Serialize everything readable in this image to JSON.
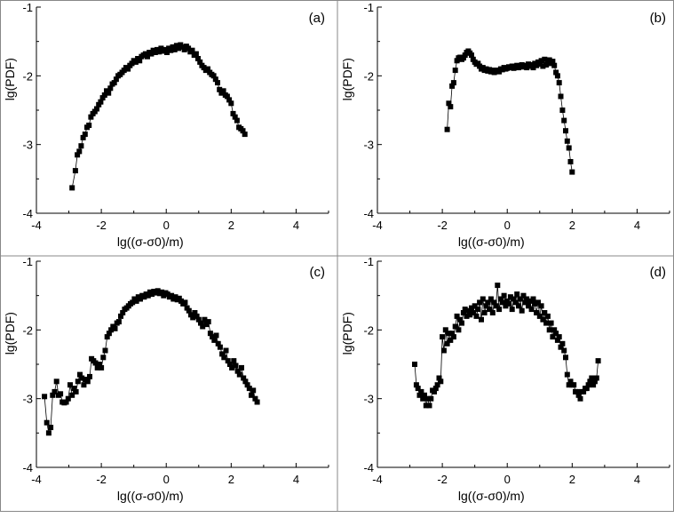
{
  "chart_data": [
    {
      "type": "line",
      "panel_label": "(a)",
      "xlabel": "lg((σ-σ0)/m)",
      "ylabel": "lg(PDF)",
      "xlim": [
        -4,
        5
      ],
      "ylim": [
        -4,
        -1
      ],
      "xticks": [
        "-4",
        "-2",
        "0",
        "2",
        "4"
      ],
      "yticks": [
        "-4",
        "-3",
        "-2",
        "-1"
      ],
      "marker": "square",
      "series": [
        {
          "x": [
            -2.9,
            -2.8,
            -2.74,
            -2.68,
            -2.62,
            -2.56,
            -2.5,
            -2.44,
            -2.38,
            -2.32,
            -2.26,
            -2.2,
            -2.14,
            -2.08,
            -2.02,
            -1.96,
            -1.9,
            -1.84,
            -1.78,
            -1.72,
            -1.66,
            -1.6,
            -1.54,
            -1.48,
            -1.42,
            -1.36,
            -1.3,
            -1.24,
            -1.18,
            -1.12,
            -1.06,
            -1.0,
            -0.94,
            -0.88,
            -0.82,
            -0.76,
            -0.7,
            -0.64,
            -0.58,
            -0.52,
            -0.46,
            -0.4,
            -0.34,
            -0.28,
            -0.22,
            -0.16,
            -0.1,
            -0.04,
            0.02,
            0.08,
            0.14,
            0.2,
            0.26,
            0.32,
            0.38,
            0.44,
            0.5,
            0.56,
            0.62,
            0.68,
            0.74,
            0.8,
            0.86,
            0.92,
            0.98,
            1.04,
            1.1,
            1.16,
            1.22,
            1.28,
            1.34,
            1.4,
            1.46,
            1.52,
            1.58,
            1.64,
            1.7,
            1.76,
            1.82,
            1.88,
            1.94,
            2.0,
            2.06,
            2.12,
            2.18,
            2.24,
            2.3,
            2.36,
            2.42
          ],
          "y": [
            -3.63,
            -3.38,
            -3.15,
            -3.1,
            -3.02,
            -2.9,
            -2.85,
            -2.75,
            -2.72,
            -2.6,
            -2.55,
            -2.52,
            -2.48,
            -2.42,
            -2.38,
            -2.32,
            -2.28,
            -2.22,
            -2.25,
            -2.18,
            -2.12,
            -2.1,
            -2.05,
            -2.0,
            -1.98,
            -1.95,
            -1.92,
            -1.88,
            -1.9,
            -1.85,
            -1.82,
            -1.78,
            -1.8,
            -1.75,
            -1.78,
            -1.72,
            -1.7,
            -1.68,
            -1.72,
            -1.66,
            -1.68,
            -1.63,
            -1.66,
            -1.62,
            -1.65,
            -1.6,
            -1.64,
            -1.62,
            -1.66,
            -1.6,
            -1.63,
            -1.58,
            -1.62,
            -1.56,
            -1.6,
            -1.55,
            -1.58,
            -1.62,
            -1.57,
            -1.6,
            -1.65,
            -1.63,
            -1.7,
            -1.68,
            -1.75,
            -1.8,
            -1.85,
            -1.88,
            -1.92,
            -1.9,
            -1.95,
            -1.98,
            -2.0,
            -2.05,
            -2.1,
            -2.2,
            -2.25,
            -2.22,
            -2.28,
            -2.3,
            -2.35,
            -2.4,
            -2.55,
            -2.6,
            -2.65,
            -2.75,
            -2.77,
            -2.8,
            -2.85
          ]
        }
      ]
    },
    {
      "type": "line",
      "panel_label": "(b)",
      "xlabel": "lg((σ-σ0)/m)",
      "ylabel": "lg(PDF)",
      "xlim": [
        -4,
        5
      ],
      "ylim": [
        -4,
        -1
      ],
      "xticks": [
        "-4",
        "-2",
        "0",
        "2",
        "4"
      ],
      "yticks": [
        "-4",
        "-3",
        "-2",
        "-1"
      ],
      "marker": "square",
      "series": [
        {
          "x": [
            -1.85,
            -1.8,
            -1.75,
            -1.7,
            -1.65,
            -1.6,
            -1.55,
            -1.5,
            -1.45,
            -1.4,
            -1.35,
            -1.3,
            -1.25,
            -1.2,
            -1.15,
            -1.1,
            -1.05,
            -1.0,
            -0.95,
            -0.9,
            -0.85,
            -0.8,
            -0.75,
            -0.7,
            -0.65,
            -0.6,
            -0.55,
            -0.5,
            -0.45,
            -0.4,
            -0.35,
            -0.3,
            -0.25,
            -0.2,
            -0.15,
            -0.1,
            -0.05,
            0.0,
            0.05,
            0.1,
            0.15,
            0.2,
            0.25,
            0.3,
            0.35,
            0.4,
            0.45,
            0.5,
            0.55,
            0.6,
            0.65,
            0.7,
            0.75,
            0.8,
            0.85,
            0.9,
            0.95,
            1.0,
            1.05,
            1.1,
            1.15,
            1.2,
            1.25,
            1.3,
            1.35,
            1.4,
            1.45,
            1.5,
            1.55,
            1.6,
            1.65,
            1.7,
            1.75,
            1.8,
            1.85,
            1.9,
            1.95,
            2.0
          ],
          "y": [
            -2.78,
            -2.4,
            -2.45,
            -2.15,
            -2.1,
            -1.92,
            -1.78,
            -1.74,
            -1.73,
            -1.76,
            -1.74,
            -1.7,
            -1.66,
            -1.64,
            -1.67,
            -1.7,
            -1.76,
            -1.8,
            -1.83,
            -1.82,
            -1.86,
            -1.9,
            -1.88,
            -1.92,
            -1.9,
            -1.93,
            -1.91,
            -1.94,
            -1.92,
            -1.95,
            -1.93,
            -1.92,
            -1.94,
            -1.9,
            -1.91,
            -1.88,
            -1.9,
            -1.89,
            -1.87,
            -1.88,
            -1.86,
            -1.89,
            -1.87,
            -1.85,
            -1.88,
            -1.86,
            -1.84,
            -1.87,
            -1.85,
            -1.88,
            -1.83,
            -1.86,
            -1.84,
            -1.88,
            -1.82,
            -1.85,
            -1.8,
            -1.83,
            -1.78,
            -1.86,
            -1.76,
            -1.84,
            -1.8,
            -1.77,
            -1.82,
            -1.79,
            -1.85,
            -1.95,
            -2.0,
            -2.1,
            -2.3,
            -2.5,
            -2.65,
            -2.8,
            -2.95,
            -3.05,
            -3.25,
            -3.4
          ]
        }
      ]
    },
    {
      "type": "line",
      "panel_label": "(c)",
      "xlabel": "lg((σ-σ0)/m)",
      "ylabel": "lg(PDF)",
      "xlim": [
        -4,
        5
      ],
      "ylim": [
        -4,
        -1
      ],
      "xticks": [
        "-4",
        "-2",
        "0",
        "2",
        "4"
      ],
      "yticks": [
        "-4",
        "-3",
        "-2",
        "-1"
      ],
      "marker": "square",
      "series": [
        {
          "x": [
            -3.75,
            -3.68,
            -3.62,
            -3.56,
            -3.5,
            -3.44,
            -3.38,
            -3.32,
            -3.26,
            -3.2,
            -3.14,
            -3.08,
            -3.02,
            -2.96,
            -2.9,
            -2.84,
            -2.78,
            -2.72,
            -2.66,
            -2.6,
            -2.54,
            -2.48,
            -2.42,
            -2.36,
            -2.3,
            -2.24,
            -2.18,
            -2.12,
            -2.06,
            -2.0,
            -1.94,
            -1.88,
            -1.82,
            -1.76,
            -1.7,
            -1.64,
            -1.58,
            -1.52,
            -1.46,
            -1.4,
            -1.34,
            -1.28,
            -1.22,
            -1.16,
            -1.1,
            -1.04,
            -0.98,
            -0.92,
            -0.86,
            -0.8,
            -0.74,
            -0.68,
            -0.62,
            -0.56,
            -0.5,
            -0.44,
            -0.38,
            -0.32,
            -0.26,
            -0.2,
            -0.14,
            -0.08,
            -0.02,
            0.04,
            0.1,
            0.16,
            0.22,
            0.28,
            0.34,
            0.4,
            0.46,
            0.52,
            0.58,
            0.64,
            0.7,
            0.76,
            0.82,
            0.88,
            0.94,
            1.0,
            1.06,
            1.12,
            1.18,
            1.24,
            1.3,
            1.36,
            1.42,
            1.48,
            1.54,
            1.6,
            1.66,
            1.72,
            1.78,
            1.84,
            1.9,
            1.96,
            2.02,
            2.08,
            2.14,
            2.2,
            2.26,
            2.32,
            2.38,
            2.44,
            2.5,
            2.56,
            2.62,
            2.68,
            2.74,
            2.8
          ],
          "y": [
            -2.97,
            -3.35,
            -3.5,
            -3.42,
            -2.95,
            -2.9,
            -2.75,
            -2.95,
            -2.93,
            -3.05,
            -3.06,
            -3.05,
            -3.0,
            -2.8,
            -2.95,
            -2.85,
            -2.9,
            -2.75,
            -2.65,
            -2.7,
            -2.8,
            -2.72,
            -2.75,
            -2.68,
            -2.42,
            -2.45,
            -2.48,
            -2.55,
            -2.5,
            -2.55,
            -2.4,
            -2.3,
            -2.1,
            -2.05,
            -2.0,
            -1.95,
            -1.98,
            -1.9,
            -1.88,
            -1.8,
            -1.75,
            -1.7,
            -1.68,
            -1.65,
            -1.62,
            -1.6,
            -1.55,
            -1.58,
            -1.52,
            -1.55,
            -1.5,
            -1.52,
            -1.48,
            -1.5,
            -1.45,
            -1.48,
            -1.44,
            -1.46,
            -1.43,
            -1.47,
            -1.45,
            -1.5,
            -1.46,
            -1.48,
            -1.52,
            -1.5,
            -1.55,
            -1.52,
            -1.56,
            -1.54,
            -1.58,
            -1.62,
            -1.6,
            -1.68,
            -1.72,
            -1.78,
            -1.82,
            -1.75,
            -1.8,
            -1.85,
            -1.9,
            -1.95,
            -1.85,
            -1.92,
            -1.88,
            -2.05,
            -2.1,
            -2.15,
            -2.08,
            -2.2,
            -2.25,
            -2.35,
            -2.4,
            -2.3,
            -2.45,
            -2.5,
            -2.55,
            -2.45,
            -2.52,
            -2.6,
            -2.65,
            -2.55,
            -2.7,
            -2.75,
            -2.8,
            -2.85,
            -2.95,
            -2.88,
            -3.0,
            -3.05
          ]
        }
      ]
    },
    {
      "type": "line",
      "panel_label": "(d)",
      "xlabel": "lg((σ-σ0)/m)",
      "ylabel": "lg(PDF)",
      "xlim": [
        -4,
        5
      ],
      "ylim": [
        -4,
        -1
      ],
      "xticks": [
        "-4",
        "-2",
        "0",
        "2",
        "4"
      ],
      "yticks": [
        "-4",
        "-3",
        "-2",
        "-1"
      ],
      "marker": "square",
      "series": [
        {
          "x": [
            -2.85,
            -2.8,
            -2.75,
            -2.7,
            -2.65,
            -2.6,
            -2.55,
            -2.5,
            -2.45,
            -2.4,
            -2.35,
            -2.3,
            -2.25,
            -2.2,
            -2.15,
            -2.1,
            -2.05,
            -2.0,
            -1.95,
            -1.9,
            -1.85,
            -1.8,
            -1.75,
            -1.7,
            -1.65,
            -1.6,
            -1.55,
            -1.5,
            -1.45,
            -1.4,
            -1.35,
            -1.3,
            -1.25,
            -1.2,
            -1.15,
            -1.1,
            -1.05,
            -1.0,
            -0.95,
            -0.9,
            -0.85,
            -0.8,
            -0.75,
            -0.7,
            -0.65,
            -0.6,
            -0.55,
            -0.5,
            -0.45,
            -0.4,
            -0.35,
            -0.3,
            -0.25,
            -0.2,
            -0.15,
            -0.1,
            -0.05,
            0.0,
            0.05,
            0.1,
            0.15,
            0.2,
            0.25,
            0.3,
            0.35,
            0.4,
            0.45,
            0.5,
            0.55,
            0.6,
            0.65,
            0.7,
            0.75,
            0.8,
            0.85,
            0.9,
            0.95,
            1.0,
            1.05,
            1.1,
            1.15,
            1.2,
            1.25,
            1.3,
            1.35,
            1.4,
            1.45,
            1.5,
            1.55,
            1.6,
            1.65,
            1.7,
            1.75,
            1.8,
            1.85,
            1.9,
            1.95,
            2.0,
            2.05,
            2.1,
            2.15,
            2.2,
            2.25,
            2.3,
            2.35,
            2.4,
            2.45,
            2.5,
            2.55,
            2.6,
            2.65,
            2.7,
            2.75,
            2.8
          ],
          "y": [
            -2.5,
            -2.8,
            -2.85,
            -2.95,
            -2.9,
            -3.0,
            -2.95,
            -3.1,
            -3.0,
            -3.1,
            -3.0,
            -2.88,
            -2.9,
            -2.85,
            -2.8,
            -2.7,
            -2.75,
            -2.1,
            -2.3,
            -2.0,
            -2.2,
            -2.05,
            -2.15,
            -2.05,
            -2.1,
            -1.95,
            -1.8,
            -2.0,
            -1.85,
            -1.9,
            -1.75,
            -1.7,
            -1.8,
            -1.72,
            -1.78,
            -1.68,
            -1.75,
            -1.65,
            -1.8,
            -1.7,
            -1.6,
            -1.85,
            -1.55,
            -1.75,
            -1.65,
            -1.6,
            -1.7,
            -1.55,
            -1.75,
            -1.6,
            -1.65,
            -1.35,
            -1.7,
            -1.55,
            -1.6,
            -1.5,
            -1.65,
            -1.58,
            -1.62,
            -1.52,
            -1.7,
            -1.55,
            -1.6,
            -1.48,
            -1.65,
            -1.55,
            -1.72,
            -1.5,
            -1.6,
            -1.55,
            -1.65,
            -1.58,
            -1.7,
            -1.55,
            -1.62,
            -1.75,
            -1.6,
            -1.8,
            -1.65,
            -1.85,
            -1.75,
            -1.9,
            -1.8,
            -2.0,
            -1.9,
            -2.1,
            -2.0,
            -2.05,
            -2.15,
            -2.1,
            -2.25,
            -2.2,
            -2.3,
            -2.4,
            -2.65,
            -2.8,
            -2.75,
            -2.8,
            -2.8,
            -2.9,
            -2.9,
            -2.95,
            -3.0,
            -2.9,
            -2.9,
            -2.85,
            -2.85,
            -2.8,
            -2.75,
            -2.7,
            -2.8,
            -2.75,
            -2.7,
            -2.45
          ]
        }
      ]
    }
  ]
}
